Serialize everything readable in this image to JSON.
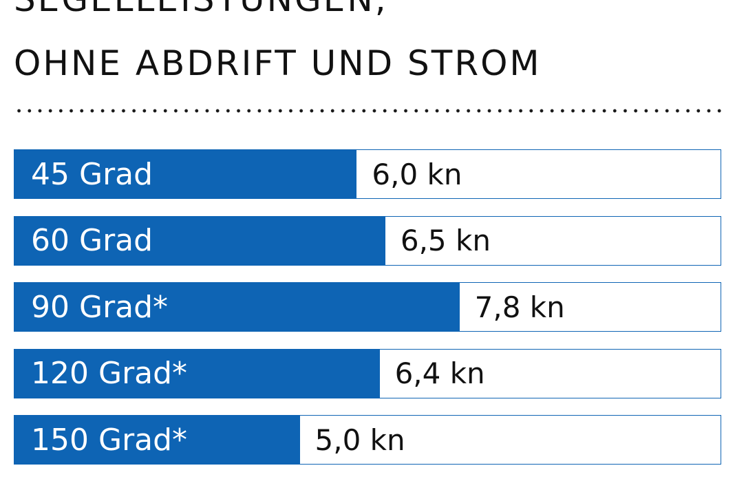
{
  "title_lines": [
    "SEGELLEISTUNGEN,",
    "OHNE ABDRIFT UND STROM"
  ],
  "colors": {
    "bar": "#0e64b4",
    "text": "#111111",
    "label_text": "#ffffff"
  },
  "chart_data": {
    "type": "bar",
    "orientation": "horizontal",
    "title": "SEGELLEISTUNGEN, OHNE ABDRIFT UND STROM",
    "categories": [
      "45 Grad",
      "60 Grad",
      "90 Grad*",
      "120 Grad*",
      "150 Grad*"
    ],
    "values": [
      6.0,
      6.5,
      7.8,
      6.4,
      5.0
    ],
    "value_labels": [
      "6,0 kn",
      "6,5 kn",
      "7,8 kn",
      "6,4 kn",
      "5,0 kn"
    ],
    "xlim": [
      0,
      12.4
    ],
    "grid": false,
    "legend": "none"
  }
}
